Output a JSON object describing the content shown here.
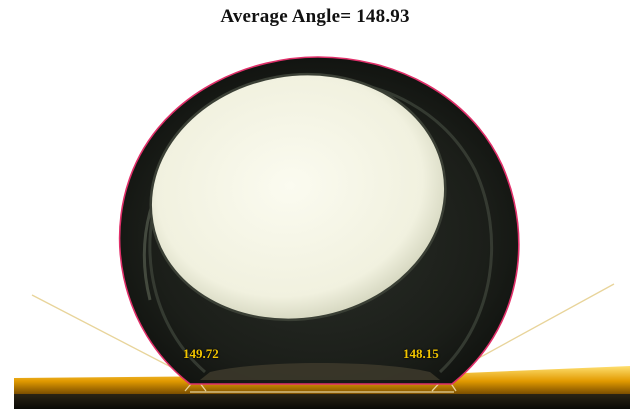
{
  "title": "Average Angle= 148.93",
  "measurement": {
    "average_angle_label": "Average Angle=",
    "average_angle_value": "148.93",
    "left_angle": "149.72",
    "right_angle": "148.15"
  },
  "colors": {
    "droplet_outline": "#e0306a",
    "tangent_lines": "#e8d49a",
    "angle_text": "#f2c500",
    "substrate_glow": "#f0a800",
    "droplet_body": "#1a1d18",
    "droplet_highlight": "#f4f4e6"
  }
}
